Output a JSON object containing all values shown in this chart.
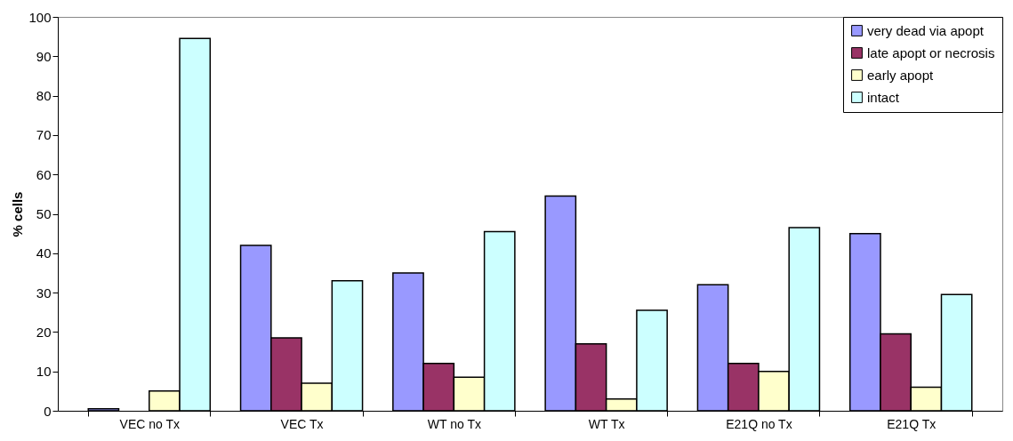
{
  "chart_data": {
    "type": "bar",
    "ylabel": "% cells",
    "categories": [
      "VEC no Tx",
      "VEC Tx",
      "WT no Tx",
      "WT Tx",
      "E21Q no Tx",
      "E21Q Tx"
    ],
    "series": [
      {
        "name": "very dead via apopt",
        "color": "#9999ff",
        "values": [
          0.5,
          42,
          35,
          54.5,
          32,
          45
        ]
      },
      {
        "name": "late apopt or necrosis",
        "color": "#993366",
        "values": [
          null,
          18.5,
          12,
          17,
          12,
          19.5
        ]
      },
      {
        "name": "early apopt",
        "color": "#ffffcc",
        "values": [
          5,
          7,
          8.5,
          3,
          10,
          6
        ]
      },
      {
        "name": "intact",
        "color": "#ccffff",
        "values": [
          94.5,
          33,
          45.5,
          25.5,
          46.5,
          29.5
        ]
      }
    ],
    "ylim": [
      0,
      100
    ],
    "yticks": [
      0,
      10,
      20,
      30,
      40,
      50,
      60,
      70,
      80,
      90,
      100
    ],
    "grid": false,
    "legend": "top right"
  }
}
